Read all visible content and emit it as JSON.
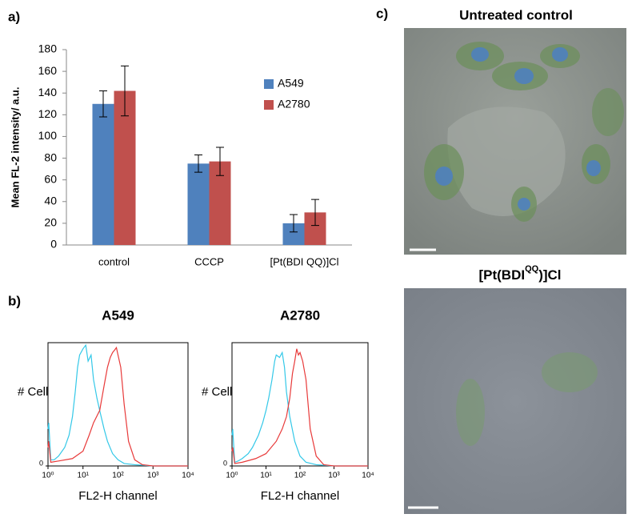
{
  "panel_labels": [
    "a)",
    "b)",
    "c)"
  ],
  "images": [
    {
      "title": "Untreated control"
    },
    {
      "title": {
        "prefix": "[Pt(BDI",
        "superscript": "QQ",
        "suffix": ")]Cl"
      }
    }
  ],
  "chart_data": [
    {
      "type": "bar",
      "ylabel": "Mean FL-2 intensity/ a.u.",
      "categories": [
        "control",
        "CCCP",
        "[Pt(BDI QQ)]Cl"
      ],
      "series": [
        {
          "name": "A549",
          "color": "#4f81bd",
          "values": [
            130,
            75,
            20
          ],
          "errors": [
            12,
            8,
            8
          ]
        },
        {
          "name": "A2780",
          "color": "#c0504d",
          "values": [
            142,
            77,
            30
          ],
          "errors": [
            23,
            13,
            12
          ]
        }
      ],
      "ylim": [
        0,
        180
      ],
      "yticks": [
        0,
        20,
        40,
        60,
        80,
        100,
        120,
        140,
        160,
        180
      ],
      "legend": "right"
    },
    {
      "type": "line",
      "title": "A549",
      "xlabel": "FL2-H channel",
      "ylabel": "# Cell",
      "xscale": "log",
      "xlim": [
        1,
        10000
      ],
      "xticks": [
        {
          "value": 1,
          "label": "10⁰"
        },
        {
          "value": 10,
          "label": "10¹"
        },
        {
          "value": 100,
          "label": "10²"
        },
        {
          "value": 1000,
          "label": "10³"
        },
        {
          "value": 10000,
          "label": "10⁴"
        }
      ],
      "ylim": [
        0,
        100
      ],
      "yticks": [
        0
      ],
      "series": [
        {
          "color": "#33c8e8",
          "x": [
            1,
            1.05,
            1.2,
            1.5,
            2,
            3,
            4,
            5,
            6,
            7,
            8,
            10,
            12,
            14,
            17,
            20,
            25,
            30,
            40,
            50,
            70,
            100,
            150,
            300,
            1000,
            10000
          ],
          "values": [
            30,
            35,
            5,
            5,
            8,
            15,
            25,
            40,
            60,
            80,
            90,
            95,
            98,
            85,
            90,
            70,
            55,
            45,
            30,
            20,
            10,
            5,
            2,
            1,
            0,
            0
          ]
        },
        {
          "color": "#e83a3a",
          "x": [
            1,
            1.05,
            1.2,
            2,
            5,
            10,
            15,
            20,
            30,
            40,
            50,
            60,
            70,
            80,
            90,
            100,
            120,
            150,
            200,
            300,
            500,
            1000,
            10000
          ],
          "values": [
            15,
            20,
            3,
            4,
            6,
            12,
            25,
            35,
            45,
            65,
            80,
            88,
            92,
            94,
            96,
            90,
            80,
            50,
            20,
            5,
            1,
            0,
            0
          ]
        }
      ]
    },
    {
      "type": "line",
      "title": "A2780",
      "xlabel": "FL2-H channel",
      "ylabel": "# Cell",
      "xscale": "log",
      "xlim": [
        1,
        10000
      ],
      "xticks": [
        {
          "value": 1,
          "label": "10⁰"
        },
        {
          "value": 10,
          "label": "10¹"
        },
        {
          "value": 100,
          "label": "10²"
        },
        {
          "value": 1000,
          "label": "10³"
        },
        {
          "value": 10000,
          "label": "10⁴"
        }
      ],
      "ylim": [
        0,
        100
      ],
      "yticks": [
        0
      ],
      "series": [
        {
          "color": "#33c8e8",
          "x": [
            1,
            1.05,
            1.2,
            1.5,
            2,
            3,
            4,
            6,
            8,
            10,
            12,
            15,
            18,
            20,
            25,
            30,
            35,
            40,
            50,
            70,
            100,
            150,
            300,
            1000,
            10000
          ],
          "values": [
            25,
            30,
            3,
            4,
            6,
            10,
            15,
            25,
            35,
            45,
            55,
            70,
            85,
            90,
            88,
            92,
            80,
            60,
            40,
            20,
            8,
            3,
            1,
            0,
            0
          ]
        },
        {
          "color": "#e83a3a",
          "x": [
            1,
            1.05,
            1.2,
            2,
            5,
            10,
            20,
            30,
            40,
            50,
            60,
            70,
            80,
            90,
            100,
            120,
            150,
            200,
            300,
            500,
            1000,
            10000
          ],
          "values": [
            12,
            15,
            2,
            3,
            6,
            10,
            20,
            30,
            40,
            55,
            75,
            85,
            95,
            90,
            92,
            85,
            70,
            30,
            8,
            1,
            0,
            0
          ]
        }
      ]
    }
  ]
}
